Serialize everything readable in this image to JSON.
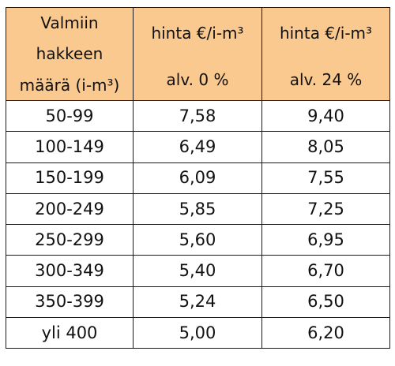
{
  "table": {
    "header_fill": "#fac98f",
    "columns": [
      {
        "lines": [
          "Valmiin",
          "hakkeen",
          "määrä (i-m³)"
        ]
      },
      {
        "lines": [
          "hinta €/i-m³",
          "alv. 0 %"
        ]
      },
      {
        "lines": [
          "hinta €/i-m³",
          "alv. 24 %"
        ]
      }
    ],
    "rows": [
      [
        "50-99",
        "7,58",
        "9,40"
      ],
      [
        "100-149",
        "6,49",
        "8,05"
      ],
      [
        "150-199",
        "6,09",
        "7,55"
      ],
      [
        "200-249",
        "5,85",
        "7,25"
      ],
      [
        "250-299",
        "5,60",
        "6,95"
      ],
      [
        "300-349",
        "5,40",
        "6,70"
      ],
      [
        "350-399",
        "5,24",
        "6,50"
      ],
      [
        "yli 400",
        "5,00",
        "6,20"
      ]
    ]
  }
}
